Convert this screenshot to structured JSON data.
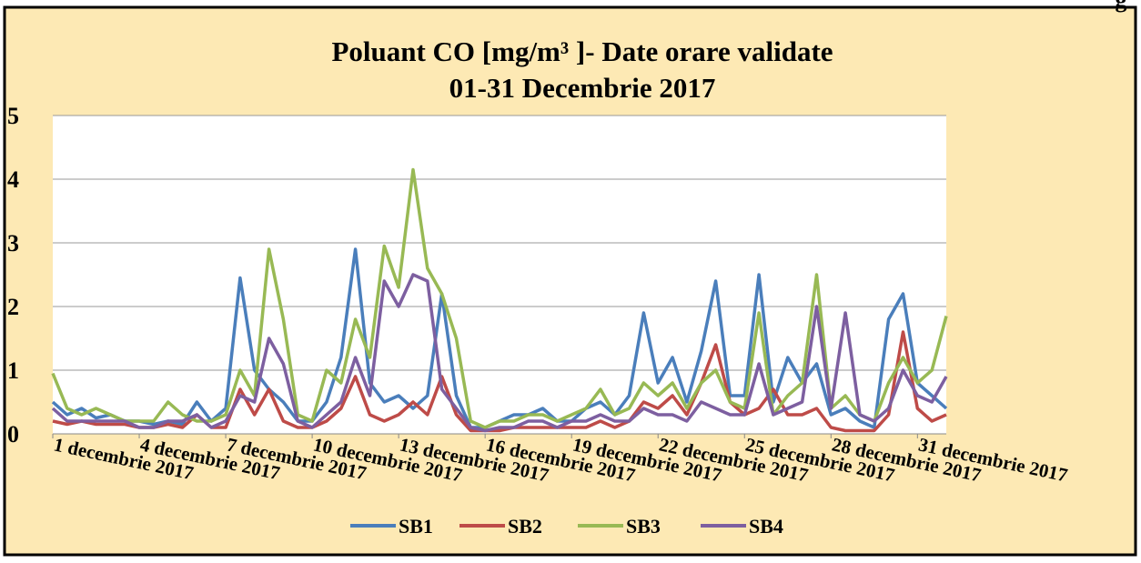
{
  "page_fragment": "g",
  "chart_data": {
    "type": "line",
    "title": "Poluant CO [mg/m³ ]- Date orare validate",
    "subtitle": "01-31 Decembrie 2017",
    "x": [
      1,
      1.5,
      2,
      2.5,
      3,
      3.5,
      4,
      4.5,
      5,
      5.5,
      6,
      6.5,
      7,
      7.5,
      8,
      8.5,
      9,
      9.5,
      10,
      10.5,
      11,
      11.5,
      12,
      12.5,
      13,
      13.5,
      14,
      14.5,
      15,
      15.5,
      16,
      16.5,
      17,
      17.5,
      18,
      18.5,
      19,
      19.5,
      20,
      20.5,
      21,
      21.5,
      22,
      22.5,
      23,
      23.5,
      24,
      24.5,
      25,
      25.5,
      26,
      26.5,
      27,
      27.5,
      28,
      28.5,
      29,
      29.5,
      30,
      30.5,
      31,
      31.5,
      32
    ],
    "series": [
      {
        "name": "SB1",
        "color": "#4a7ebb",
        "values": [
          0.5,
          0.3,
          0.4,
          0.25,
          0.3,
          0.2,
          0.2,
          0.15,
          0.2,
          0.15,
          0.5,
          0.2,
          0.4,
          2.45,
          1.0,
          0.7,
          0.5,
          0.2,
          0.2,
          0.5,
          1.2,
          2.9,
          0.8,
          0.5,
          0.6,
          0.4,
          0.6,
          2.2,
          0.6,
          0.1,
          0.1,
          0.2,
          0.3,
          0.3,
          0.4,
          0.2,
          0.2,
          0.4,
          0.5,
          0.3,
          0.6,
          1.9,
          0.8,
          1.2,
          0.5,
          1.3,
          2.4,
          0.6,
          0.6,
          2.5,
          0.5,
          1.2,
          0.8,
          1.1,
          0.3,
          0.4,
          0.2,
          0.1,
          1.8,
          2.2,
          0.8,
          0.6,
          0.4
        ]
      },
      {
        "name": "SB2",
        "color": "#be4b48",
        "values": [
          0.2,
          0.15,
          0.2,
          0.15,
          0.15,
          0.15,
          0.1,
          0.1,
          0.15,
          0.1,
          0.3,
          0.1,
          0.1,
          0.7,
          0.3,
          0.7,
          0.2,
          0.1,
          0.1,
          0.2,
          0.4,
          0.9,
          0.3,
          0.2,
          0.3,
          0.5,
          0.3,
          0.9,
          0.3,
          0.05,
          0.05,
          0.05,
          0.1,
          0.1,
          0.1,
          0.1,
          0.1,
          0.1,
          0.2,
          0.1,
          0.2,
          0.5,
          0.4,
          0.6,
          0.3,
          0.8,
          1.4,
          0.5,
          0.3,
          0.4,
          0.7,
          0.3,
          0.3,
          0.4,
          0.1,
          0.05,
          0.05,
          0.05,
          0.3,
          1.6,
          0.4,
          0.2,
          0.3
        ]
      },
      {
        "name": "SB3",
        "color": "#98b954",
        "values": [
          0.95,
          0.4,
          0.3,
          0.4,
          0.3,
          0.2,
          0.2,
          0.2,
          0.5,
          0.3,
          0.2,
          0.2,
          0.3,
          1.0,
          0.6,
          2.9,
          1.8,
          0.3,
          0.2,
          1.0,
          0.8,
          1.8,
          1.2,
          2.95,
          2.3,
          4.15,
          2.6,
          2.2,
          1.5,
          0.2,
          0.1,
          0.2,
          0.2,
          0.3,
          0.3,
          0.2,
          0.3,
          0.4,
          0.7,
          0.3,
          0.4,
          0.8,
          0.6,
          0.8,
          0.4,
          0.8,
          1.0,
          0.5,
          0.4,
          1.9,
          0.3,
          0.6,
          0.8,
          2.5,
          0.4,
          0.6,
          0.3,
          0.2,
          0.8,
          1.2,
          0.8,
          1.0,
          1.85
        ]
      },
      {
        "name": "SB4",
        "color": "#7d5fa0",
        "values": [
          0.4,
          0.2,
          0.2,
          0.2,
          0.2,
          0.2,
          0.1,
          0.1,
          0.2,
          0.2,
          0.3,
          0.1,
          0.2,
          0.6,
          0.5,
          1.5,
          1.1,
          0.2,
          0.1,
          0.3,
          0.5,
          1.2,
          0.6,
          2.4,
          2.0,
          2.5,
          2.4,
          0.7,
          0.4,
          0.1,
          0.05,
          0.1,
          0.1,
          0.2,
          0.2,
          0.1,
          0.2,
          0.2,
          0.3,
          0.2,
          0.2,
          0.4,
          0.3,
          0.3,
          0.2,
          0.5,
          0.4,
          0.3,
          0.3,
          1.1,
          0.3,
          0.4,
          0.5,
          2.0,
          0.4,
          1.9,
          0.3,
          0.2,
          0.4,
          1.0,
          0.6,
          0.5,
          0.9
        ]
      }
    ],
    "xlim": [
      1,
      32
    ],
    "xticks": [
      {
        "value": 1,
        "label": "1 decembrie 2017"
      },
      {
        "value": 4,
        "label": "4 decembrie 2017"
      },
      {
        "value": 7,
        "label": "7 decembrie 2017"
      },
      {
        "value": 10,
        "label": "10 decembrie 2017"
      },
      {
        "value": 13,
        "label": "13 decembrie 2017"
      },
      {
        "value": 16,
        "label": "16 decembrie 2017"
      },
      {
        "value": 19,
        "label": "19 decembrie 2017"
      },
      {
        "value": 22,
        "label": "22 decembrie 2017"
      },
      {
        "value": 25,
        "label": "25 decembrie 2017"
      },
      {
        "value": 28,
        "label": "28 decembrie 2017"
      },
      {
        "value": 31,
        "label": "31 decembrie 2017"
      }
    ],
    "ylim": [
      0,
      5
    ],
    "yticks": [
      0,
      1,
      2,
      3,
      4,
      5
    ],
    "grid": true,
    "legend": "bottom"
  }
}
